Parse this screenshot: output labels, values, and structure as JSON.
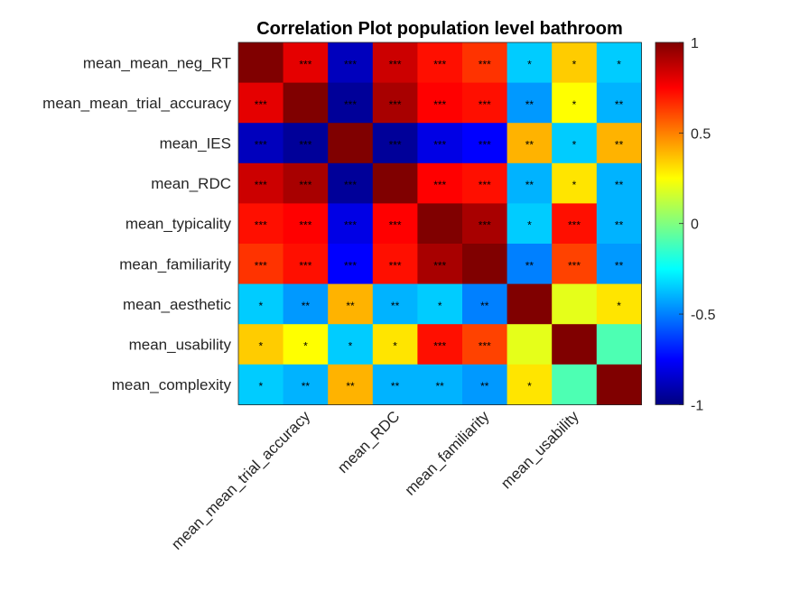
{
  "chart_data": {
    "type": "heatmap",
    "title": "Correlation Plot population level bathroom",
    "variables": [
      "mean_mean_neg_RT",
      "mean_mean_trial_accuracy",
      "mean_IES",
      "mean_RDC",
      "mean_typicality",
      "mean_familiarity",
      "mean_aesthetic",
      "mean_usability",
      "mean_complexity"
    ],
    "x_tick_labels": [
      "mean_mean_trial_accuracy",
      "mean_RDC",
      "mean_familiarity",
      "mean_usability"
    ],
    "x_tick_columns": [
      1,
      3,
      5,
      7
    ],
    "values": [
      [
        1.0,
        0.8,
        -0.88,
        0.85,
        0.72,
        0.65,
        -0.35,
        0.35,
        -0.35
      ],
      [
        0.8,
        1.0,
        -0.95,
        0.92,
        0.75,
        0.72,
        -0.45,
        0.25,
        -0.4
      ],
      [
        -0.88,
        -0.95,
        1.0,
        -0.95,
        -0.8,
        -0.75,
        0.4,
        -0.35,
        0.4
      ],
      [
        0.85,
        0.92,
        -0.95,
        1.0,
        0.75,
        0.72,
        -0.4,
        0.3,
        -0.4
      ],
      [
        0.72,
        0.75,
        -0.8,
        0.75,
        1.0,
        0.92,
        -0.35,
        0.72,
        -0.4
      ],
      [
        0.65,
        0.72,
        -0.75,
        0.72,
        0.92,
        1.0,
        -0.5,
        0.62,
        -0.45
      ],
      [
        -0.35,
        -0.45,
        0.4,
        -0.4,
        -0.35,
        -0.5,
        1.0,
        0.2,
        0.3
      ],
      [
        0.35,
        0.25,
        -0.35,
        0.3,
        0.72,
        0.62,
        0.2,
        1.0,
        -0.1
      ],
      [
        -0.35,
        -0.4,
        0.4,
        -0.4,
        -0.4,
        -0.45,
        0.3,
        -0.1,
        1.0
      ]
    ],
    "significance": [
      [
        "",
        "***",
        "***",
        "***",
        "***",
        "***",
        "*",
        "*",
        "*"
      ],
      [
        "***",
        "",
        "***",
        "***",
        "***",
        "***",
        "**",
        "*",
        "**"
      ],
      [
        "***",
        "***",
        "",
        "***",
        "***",
        "***",
        "**",
        "*",
        "**"
      ],
      [
        "***",
        "***",
        "***",
        "",
        "***",
        "***",
        "**",
        "*",
        "**"
      ],
      [
        "***",
        "***",
        "***",
        "***",
        "",
        "***",
        "*",
        "***",
        "**"
      ],
      [
        "***",
        "***",
        "***",
        "***",
        "***",
        "",
        "**",
        "***",
        "**"
      ],
      [
        "*",
        "**",
        "**",
        "**",
        "*",
        "**",
        "",
        "",
        "*"
      ],
      [
        "*",
        "*",
        "*",
        "*",
        "***",
        "***",
        "",
        "",
        ""
      ],
      [
        "*",
        "**",
        "**",
        "**",
        "**",
        "**",
        "*",
        "",
        ""
      ]
    ],
    "colorbar": {
      "range": [
        -1,
        1
      ],
      "ticks": [
        "1",
        "0.5",
        "0",
        "-0.5",
        "-1"
      ],
      "tick_values": [
        1,
        0.5,
        0,
        -0.5,
        -1
      ],
      "colormap": "jet"
    }
  }
}
